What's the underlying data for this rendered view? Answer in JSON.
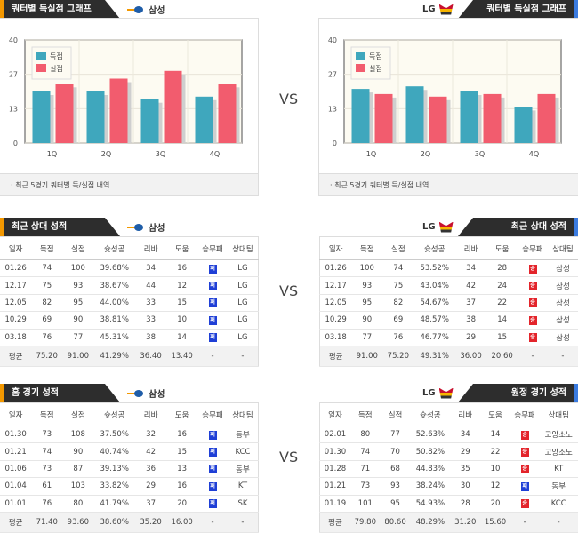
{
  "vs_label": "VS",
  "home_team": "삼성",
  "away_team": "LG",
  "sections": {
    "chart_left": "쿼터별 득실점 그래프",
    "chart_right": "쿼터별 득실점 그래프",
    "h2h_left": "최근 상대 성적",
    "h2h_right": "최근 상대 성적",
    "home_left": "홈 경기 성적",
    "away_right": "원정 경기 성적"
  },
  "chart_footer": "· 최근 5경기 쿼터별 득/실점 내역",
  "colors": {
    "scored": "#3fa7bd",
    "allowed": "#f25c6e",
    "win": "#e3242b",
    "loss": "#1f3fd6"
  },
  "chart_data": [
    {
      "type": "bar",
      "team": "삼성",
      "categories": [
        "1Q",
        "2Q",
        "3Q",
        "4Q"
      ],
      "ylim": [
        0,
        40
      ],
      "yticks": [
        "0",
        "13",
        "27",
        "40"
      ],
      "series": [
        {
          "name": "득점",
          "values": [
            20,
            20,
            17,
            18
          ]
        },
        {
          "name": "실점",
          "values": [
            23,
            25,
            28,
            23
          ]
        }
      ],
      "legend": "top-left"
    },
    {
      "type": "bar",
      "team": "LG",
      "categories": [
        "1Q",
        "2Q",
        "3Q",
        "4Q"
      ],
      "ylim": [
        0,
        40
      ],
      "yticks": [
        "0",
        "13",
        "27",
        "40"
      ],
      "series": [
        {
          "name": "득점",
          "values": [
            21,
            22,
            20,
            14
          ]
        },
        {
          "name": "실점",
          "values": [
            19,
            18,
            19,
            19
          ]
        }
      ],
      "legend": "top-left"
    }
  ],
  "columns": [
    "일자",
    "득점",
    "실점",
    "슛성공",
    "리바",
    "도움",
    "승무패",
    "상대팀"
  ],
  "tables": {
    "h2h_left": {
      "rows": [
        [
          "01.26",
          "74",
          "100",
          "39.68%",
          "34",
          "16",
          "패",
          "LG"
        ],
        [
          "12.17",
          "75",
          "93",
          "38.67%",
          "44",
          "12",
          "패",
          "LG"
        ],
        [
          "12.05",
          "82",
          "95",
          "44.00%",
          "33",
          "15",
          "패",
          "LG"
        ],
        [
          "10.29",
          "69",
          "90",
          "38.81%",
          "33",
          "10",
          "패",
          "LG"
        ],
        [
          "03.18",
          "76",
          "77",
          "45.31%",
          "38",
          "14",
          "패",
          "LG"
        ]
      ],
      "avg": [
        "평균",
        "75.20",
        "91.00",
        "41.29%",
        "36.40",
        "13.40",
        "-",
        "-"
      ]
    },
    "h2h_right": {
      "rows": [
        [
          "01.26",
          "100",
          "74",
          "53.52%",
          "34",
          "28",
          "승",
          "삼성"
        ],
        [
          "12.17",
          "93",
          "75",
          "43.04%",
          "42",
          "24",
          "승",
          "삼성"
        ],
        [
          "12.05",
          "95",
          "82",
          "54.67%",
          "37",
          "22",
          "승",
          "삼성"
        ],
        [
          "10.29",
          "90",
          "69",
          "48.57%",
          "38",
          "14",
          "승",
          "삼성"
        ],
        [
          "03.18",
          "77",
          "76",
          "46.77%",
          "29",
          "15",
          "승",
          "삼성"
        ]
      ],
      "avg": [
        "평균",
        "91.00",
        "75.20",
        "49.31%",
        "36.00",
        "20.60",
        "-",
        "-"
      ]
    },
    "home_left": {
      "rows": [
        [
          "01.30",
          "73",
          "108",
          "37.50%",
          "32",
          "16",
          "패",
          "동부"
        ],
        [
          "01.21",
          "74",
          "90",
          "40.74%",
          "42",
          "15",
          "패",
          "KCC"
        ],
        [
          "01.06",
          "73",
          "87",
          "39.13%",
          "36",
          "13",
          "패",
          "동부"
        ],
        [
          "01.04",
          "61",
          "103",
          "33.82%",
          "29",
          "16",
          "패",
          "KT"
        ],
        [
          "01.01",
          "76",
          "80",
          "41.79%",
          "37",
          "20",
          "패",
          "SK"
        ]
      ],
      "avg": [
        "평균",
        "71.40",
        "93.60",
        "38.60%",
        "35.20",
        "16.00",
        "-",
        "-"
      ]
    },
    "away_right": {
      "rows": [
        [
          "02.01",
          "80",
          "77",
          "52.63%",
          "34",
          "14",
          "승",
          "고양소노"
        ],
        [
          "01.30",
          "74",
          "70",
          "50.82%",
          "29",
          "22",
          "승",
          "고양소노"
        ],
        [
          "01.28",
          "71",
          "68",
          "44.83%",
          "35",
          "10",
          "승",
          "KT"
        ],
        [
          "01.21",
          "73",
          "93",
          "38.24%",
          "30",
          "12",
          "패",
          "동부"
        ],
        [
          "01.19",
          "101",
          "95",
          "54.93%",
          "28",
          "20",
          "승",
          "KCC"
        ]
      ],
      "avg": [
        "평균",
        "79.80",
        "80.60",
        "48.29%",
        "31.20",
        "15.60",
        "-",
        "-"
      ]
    }
  }
}
